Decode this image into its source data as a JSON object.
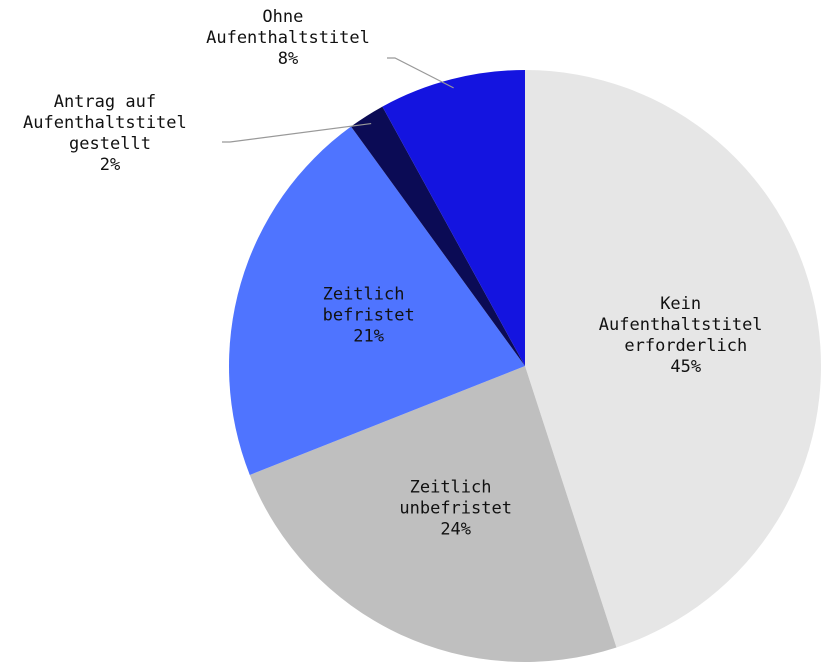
{
  "chart_data": {
    "type": "pie",
    "categories": [
      "Kein Aufenthaltstitel erforderlich",
      "Zeitlich unbefristet",
      "Zeitlich befristet",
      "Antrag auf Aufenthaltstitel gestellt",
      "Ohne Aufenthaltstitel"
    ],
    "values": [
      45,
      24,
      21,
      2,
      8
    ],
    "value_labels": [
      "45%",
      "24%",
      "21%",
      "2%",
      "8%"
    ],
    "colors": [
      "#e6e6e6",
      "#bfbfbf",
      "#4f74ff",
      "#0b0b55",
      "#1414e0"
    ]
  }
}
